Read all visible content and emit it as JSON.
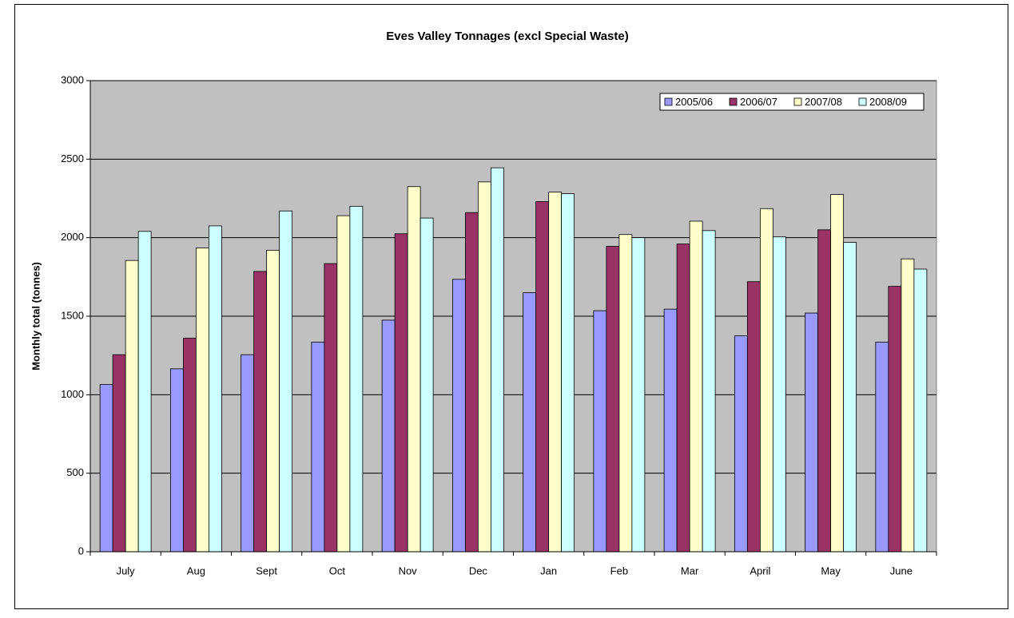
{
  "chart_data": {
    "type": "bar",
    "title": "Eves Valley Tonnages (excl Special Waste)",
    "ylabel": "Monthly total (tonnes)",
    "categories": [
      "July",
      "Aug",
      "Sept",
      "Oct",
      "Nov",
      "Dec",
      "Jan",
      "Feb",
      "Mar",
      "April",
      "May",
      "June"
    ],
    "series": [
      {
        "name": "2005/06",
        "color": "#9999ff",
        "values": [
          1065,
          1165,
          1255,
          1335,
          1475,
          1735,
          1650,
          1535,
          1545,
          1375,
          1520,
          1335
        ]
      },
      {
        "name": "2006/07",
        "color": "#993366",
        "values": [
          1255,
          1360,
          1785,
          1835,
          2025,
          2160,
          2230,
          1945,
          1960,
          1720,
          2050,
          1690
        ]
      },
      {
        "name": "2007/08",
        "color": "#ffffcc",
        "values": [
          1855,
          1935,
          1920,
          2140,
          2325,
          2355,
          2290,
          2020,
          2105,
          2185,
          2275,
          1865
        ]
      },
      {
        "name": "2008/09",
        "color": "#ccffff",
        "values": [
          2040,
          2075,
          2170,
          2200,
          2125,
          2445,
          2280,
          2000,
          2045,
          2005,
          1970,
          1800
        ]
      }
    ],
    "ylim": [
      0,
      3000
    ],
    "yticks": [
      0,
      500,
      1000,
      1500,
      2000,
      2500,
      3000
    ],
    "grid": true,
    "legend": "upper right",
    "plot_background": "#c0c0c0"
  }
}
